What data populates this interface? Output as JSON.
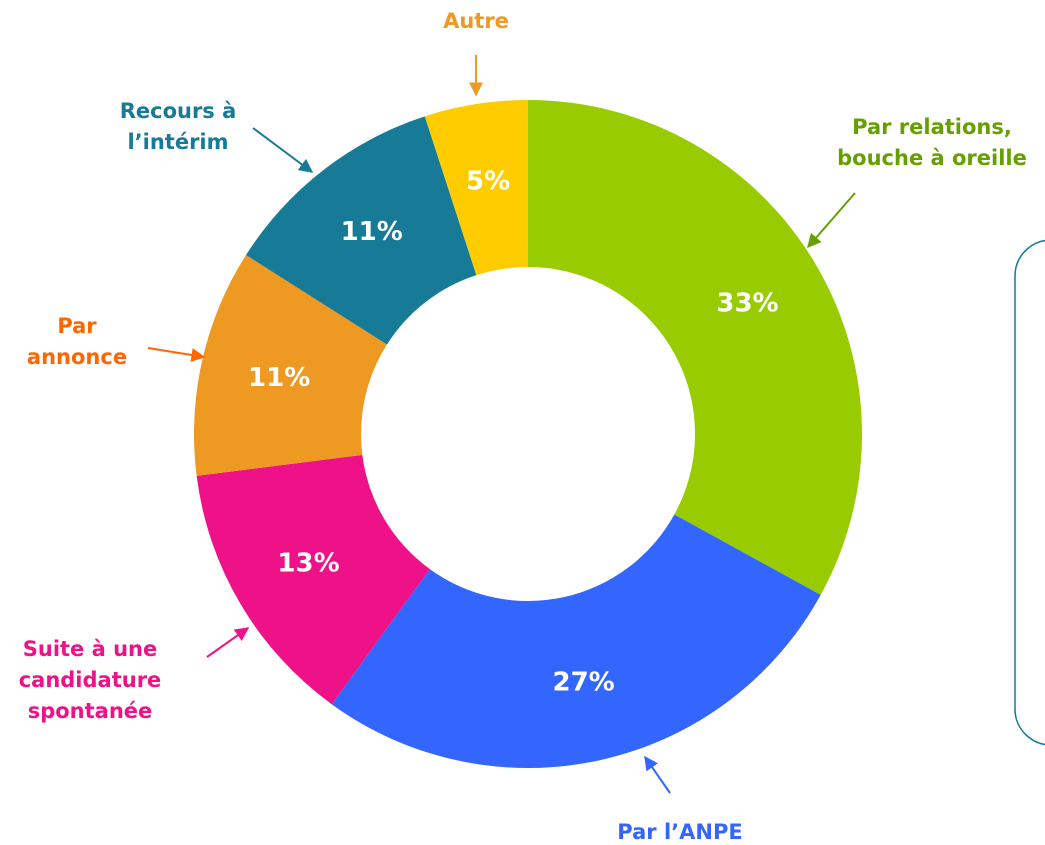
{
  "chart_data": {
    "type": "donut",
    "categories": [
      [
        "Par relations,",
        "bouche à oreille"
      ],
      [
        "Par l’ANPE"
      ],
      [
        "Suite à une",
        "candidature",
        "spontanée"
      ],
      [
        "Par",
        "annonce"
      ],
      [
        "Recours à",
        "l’intérim"
      ],
      [
        "Autre"
      ]
    ],
    "values": [
      33,
      27,
      13,
      11,
      11,
      5
    ],
    "value_labels": [
      "33%",
      "27%",
      "13%",
      "11%",
      "11%",
      "5%"
    ],
    "colors": [
      "#99cc00",
      "#3366ff",
      "#ee1188",
      "#ee9922",
      "#177a96",
      "#ffcc00"
    ],
    "label_colors": [
      "#66a000",
      "#3366ff",
      "#ee1188",
      "#ff6600",
      "#177a96",
      "#ee9922"
    ]
  }
}
